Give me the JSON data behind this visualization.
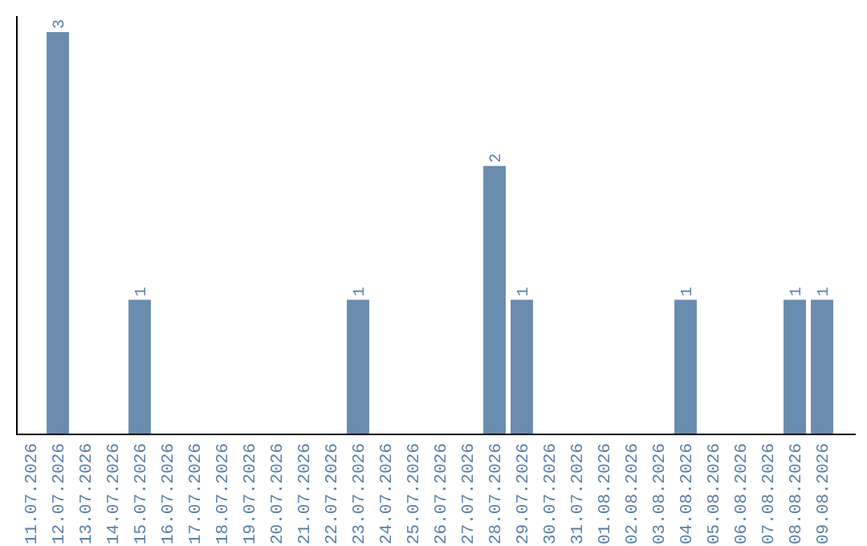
{
  "chart_data": {
    "type": "bar",
    "categories": [
      "11.07.2026",
      "12.07.2026",
      "13.07.2026",
      "14.07.2026",
      "15.07.2026",
      "16.07.2026",
      "17.07.2026",
      "18.07.2026",
      "19.07.2026",
      "20.07.2026",
      "21.07.2026",
      "22.07.2026",
      "23.07.2026",
      "24.07.2026",
      "25.07.2026",
      "26.07.2026",
      "27.07.2026",
      "28.07.2026",
      "29.07.2026",
      "30.07.2026",
      "31.07.2026",
      "01.08.2026",
      "02.08.2026",
      "03.08.2026",
      "04.08.2026",
      "05.08.2026",
      "06.08.2026",
      "07.08.2026",
      "08.08.2026",
      "09.08.2026"
    ],
    "values": [
      0,
      3,
      0,
      0,
      1,
      0,
      0,
      0,
      0,
      0,
      0,
      0,
      1,
      0,
      0,
      0,
      0,
      2,
      1,
      0,
      0,
      0,
      0,
      0,
      1,
      0,
      0,
      0,
      1,
      1
    ],
    "value_labels": [
      null,
      "3",
      null,
      null,
      "1",
      null,
      null,
      null,
      null,
      null,
      null,
      null,
      "1",
      null,
      null,
      null,
      null,
      "2",
      "1",
      null,
      null,
      null,
      null,
      null,
      "1",
      null,
      null,
      null,
      "1",
      "1"
    ],
    "color": "#6a8caf"
  }
}
